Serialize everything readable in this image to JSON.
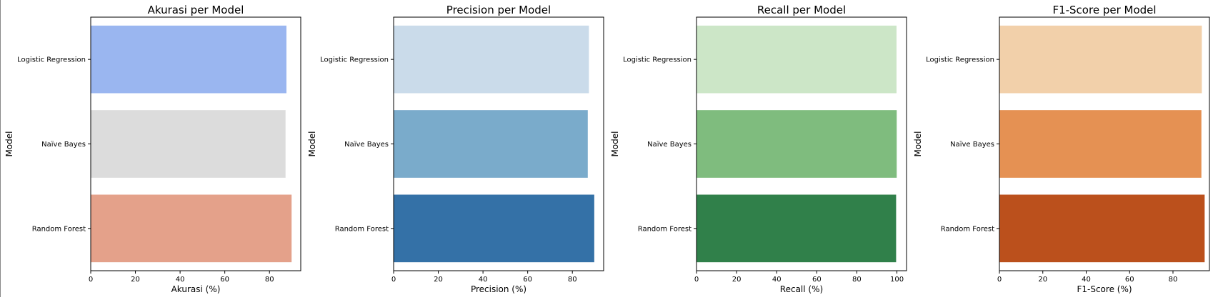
{
  "chart_data": [
    {
      "type": "bar",
      "orientation": "horizontal",
      "title": "Akurasi per Model",
      "xlabel": "Akurasi (%)",
      "ylabel": "Model",
      "categories": [
        "Logistic Regression",
        "Naïve Bayes",
        "Random Forest"
      ],
      "values": [
        87.6,
        87.2,
        89.9
      ],
      "colors": [
        "#9ab6f0",
        "#dcdcdc",
        "#e4a18a"
      ],
      "xlim": [
        0,
        94
      ],
      "xticks": [
        0,
        20,
        40,
        60,
        80
      ],
      "grid": false
    },
    {
      "type": "bar",
      "orientation": "horizontal",
      "title": "Precision per Model",
      "xlabel": "Precision (%)",
      "ylabel": "Model",
      "categories": [
        "Logistic Regression",
        "Naïve Bayes",
        "Random Forest"
      ],
      "values": [
        87.4,
        86.9,
        89.8
      ],
      "colors": [
        "#cadbea",
        "#7aabcb",
        "#3471a7"
      ],
      "xlim": [
        0,
        94
      ],
      "xticks": [
        0,
        20,
        40,
        60,
        80
      ],
      "grid": false
    },
    {
      "type": "bar",
      "orientation": "horizontal",
      "title": "Recall per Model",
      "xlabel": "Recall (%)",
      "ylabel": "Model",
      "categories": [
        "Logistic Regression",
        "Naïve Bayes",
        "Random Forest"
      ],
      "values": [
        99.8,
        99.9,
        99.6
      ],
      "colors": [
        "#cce6c7",
        "#7fbc7e",
        "#30804a"
      ],
      "xlim": [
        0,
        104.8
      ],
      "xticks": [
        0,
        20,
        40,
        60,
        80,
        100
      ],
      "grid": false
    },
    {
      "type": "bar",
      "orientation": "horizontal",
      "title": "F1-Score per Model",
      "xlabel": "F1-Score (%)",
      "ylabel": "Model",
      "categories": [
        "Logistic Regression",
        "Naïve Bayes",
        "Random Forest"
      ],
      "values": [
        93.3,
        93.1,
        94.6
      ],
      "colors": [
        "#f2d0aa",
        "#e59153",
        "#bb501c"
      ],
      "xlim": [
        0,
        96.8
      ],
      "xticks": [
        0,
        20,
        40,
        60,
        80
      ],
      "grid": false
    }
  ]
}
